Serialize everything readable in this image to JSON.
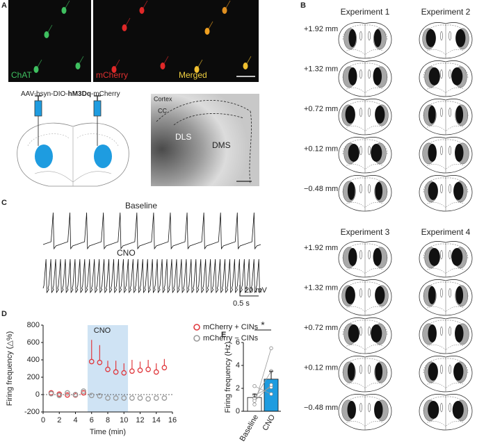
{
  "panel_labels": [
    "A",
    "B",
    "C",
    "D",
    "E"
  ],
  "panel_a": {
    "channels": [
      "ChAT",
      "mCherry",
      "Merged"
    ],
    "virus": {
      "prefix": "AAV-hsyn-DIO-",
      "bold": "hM3Dq",
      "suffix": "-mCherry"
    },
    "regions": [
      "Cortex",
      "CC",
      "DLS",
      "DMS"
    ]
  },
  "panel_b": {
    "groups": [
      [
        "Experiment 1",
        "Experiment 2"
      ],
      [
        "Experiment 3",
        "Experiment 4"
      ]
    ],
    "levels": [
      "+1.92 mm",
      "+1.32 mm",
      "+0.72 mm",
      "+0.12 mm",
      "−0.48 mm"
    ]
  },
  "panel_c": {
    "traces": [
      "Baseline",
      "CNO"
    ],
    "scale_y": "20 mV",
    "scale_x": "0.5 s"
  },
  "chart_data": [
    {
      "type": "scatter",
      "xlabel": "Time (min)",
      "ylabel": "Firing frequency (△%)",
      "x": [
        1,
        2,
        3,
        4,
        5,
        6,
        7,
        8,
        9,
        10,
        11,
        12,
        13,
        14,
        15
      ],
      "series": [
        {
          "name": "mCherry + CINs",
          "color": "#e0393e",
          "error_direction": "up",
          "values": [
            20,
            5,
            -5,
            -5,
            20,
            380,
            370,
            290,
            260,
            250,
            270,
            280,
            290,
            260,
            310
          ],
          "errors": [
            10,
            10,
            10,
            10,
            15,
            250,
            200,
            100,
            130,
            110,
            130,
            100,
            110,
            100,
            100
          ]
        },
        {
          "name": "mCherry − CINs",
          "color": "#9a9a9a",
          "error_direction": "down",
          "values": [
            10,
            -10,
            20,
            0,
            40,
            -10,
            -15,
            -40,
            -40,
            -40,
            -40,
            -40,
            -50,
            -40,
            -40
          ],
          "errors": [
            15,
            15,
            20,
            15,
            20,
            25,
            25,
            30,
            30,
            30,
            30,
            30,
            30,
            30,
            30
          ]
        }
      ],
      "xlim": [
        0,
        16
      ],
      "ylim": [
        -200,
        800
      ],
      "xticks": [
        0,
        2,
        4,
        6,
        8,
        10,
        12,
        14,
        16
      ],
      "yticks": [
        -200,
        0,
        200,
        400,
        600,
        800
      ],
      "shade": {
        "x": [
          5.5,
          10.5
        ],
        "label": "CNO",
        "color": "#cfe3f4"
      },
      "hline": 0,
      "legend": "upper right"
    },
    {
      "type": "bar",
      "ylabel": "Firing frequency (Hz)",
      "categories": [
        "Baseline",
        "CNO"
      ],
      "values": [
        1.2,
        2.8
      ],
      "errors": [
        0.3,
        0.7
      ],
      "colors": [
        "#ffffff",
        "#1e9ce0"
      ],
      "points": [
        [
          0.6,
          1.1,
          1.4,
          2.2,
          0.9
        ],
        [
          5.5,
          3.5,
          2.1,
          1.5,
          2.3
        ]
      ],
      "ylim": [
        0,
        6
      ],
      "yticks": [
        0,
        2,
        4,
        6
      ],
      "annotation": "*"
    }
  ]
}
